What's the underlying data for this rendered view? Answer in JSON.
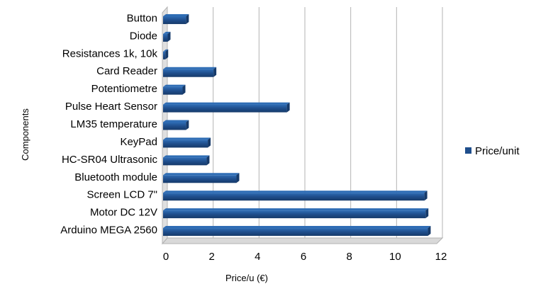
{
  "chart_data": {
    "type": "bar",
    "orientation": "horizontal",
    "title": "",
    "xlabel": "Price/u (€)",
    "ylabel": "Components",
    "xlim": [
      0,
      12
    ],
    "xticks": [
      "0",
      "2",
      "4",
      "6",
      "8",
      "10",
      "12"
    ],
    "grid": true,
    "legend_position": "right",
    "categories": [
      "Button",
      "Diode",
      "Resistances 1k, 10k",
      "Card Reader",
      "Potentiometre",
      "Pulse Heart Sensor",
      "LM35 temperature",
      "KeyPad",
      "HC-SR04 Ultrasonic",
      "Bluetooth module",
      "Screen LCD 7\"",
      "Motor DC 12V",
      "Arduino MEGA 2560"
    ],
    "series": [
      {
        "name": "Price/unit",
        "color": "#1f4e8c",
        "values": [
          1.0,
          0.2,
          0.1,
          2.2,
          0.85,
          5.4,
          1.0,
          1.95,
          1.9,
          3.2,
          11.4,
          11.45,
          11.55
        ]
      }
    ]
  }
}
